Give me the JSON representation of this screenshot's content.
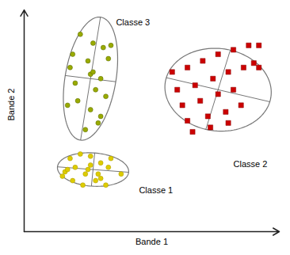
{
  "chart_data": {
    "type": "scatter",
    "xlabel": "Bande 1",
    "ylabel": "Bande 2",
    "xlim": [
      0,
      10
    ],
    "ylim": [
      0,
      10
    ],
    "tick_labels": false,
    "grid": false,
    "background_color": "#ffffff",
    "axis_color": "#222222",
    "ellipse_color": "#777777",
    "crosshair_color": "#666666",
    "series": [
      {
        "marker": "circle",
        "color": "#99aa00",
        "edge_color": "#556600",
        "x": [
          2.2,
          2.7,
          1.9,
          3.1,
          2.5,
          1.8,
          3.3,
          2.6,
          3.0,
          2.0,
          2.8,
          3.2,
          2.1,
          2.6,
          3.0,
          1.7,
          2.9,
          2.4,
          3.4,
          2.7
        ],
        "y": [
          8.9,
          8.5,
          8.0,
          8.3,
          7.7,
          7.4,
          7.8,
          7.1,
          6.9,
          6.7,
          6.4,
          6.1,
          5.9,
          5.5,
          5.2,
          5.7,
          4.9,
          4.6,
          8.4,
          7.2
        ],
        "ellipse": {
          "cx": 2.6,
          "cy": 6.9,
          "width": 2.0,
          "height": 5.6,
          "angle": -8
        }
      },
      {
        "marker": "square",
        "color": "#cc0000",
        "edge_color": "#880000",
        "x": [
          5.8,
          6.4,
          7.0,
          7.6,
          8.2,
          8.8,
          9.2,
          6.0,
          6.7,
          7.4,
          8.0,
          8.6,
          9.0,
          6.2,
          6.9,
          7.6,
          8.2,
          6.4,
          7.2,
          7.9,
          8.5,
          6.6,
          7.3,
          8.0,
          9.2
        ],
        "y": [
          7.2,
          7.4,
          7.7,
          8.0,
          8.2,
          8.4,
          8.4,
          6.4,
          6.6,
          6.9,
          7.2,
          7.4,
          7.6,
          5.7,
          5.9,
          6.2,
          6.4,
          5.0,
          5.2,
          5.4,
          5.7,
          4.5,
          4.7,
          4.9,
          7.4
        ],
        "ellipse": {
          "cx": 7.6,
          "cy": 6.4,
          "width": 4.2,
          "height": 3.7,
          "angle": -15
        }
      },
      {
        "marker": "circle",
        "color": "#ddcc00",
        "edge_color": "#aa9900",
        "x": [
          1.8,
          2.2,
          2.6,
          3.0,
          3.4,
          1.6,
          2.0,
          2.5,
          2.9,
          3.3,
          1.9,
          2.3,
          2.8,
          3.2,
          3.8,
          1.5,
          2.4,
          3.0,
          2.6,
          1.7
        ],
        "y": [
          3.3,
          3.5,
          3.4,
          3.1,
          3.3,
          2.7,
          2.9,
          2.8,
          2.6,
          2.9,
          2.3,
          2.1,
          2.3,
          2.1,
          2.6,
          2.5,
          2.6,
          2.4,
          3.0,
          2.8
        ],
        "ellipse": {
          "cx": 2.7,
          "cy": 2.8,
          "width": 2.8,
          "height": 1.5,
          "angle": -5
        }
      }
    ],
    "annotations": [
      {
        "text": "Classe 3",
        "x": 3.6,
        "y": 9.6
      },
      {
        "text": "Classe 2",
        "x": 8.2,
        "y": 3.2
      },
      {
        "text": "Classe 1",
        "x": 4.5,
        "y": 2.0
      }
    ]
  }
}
